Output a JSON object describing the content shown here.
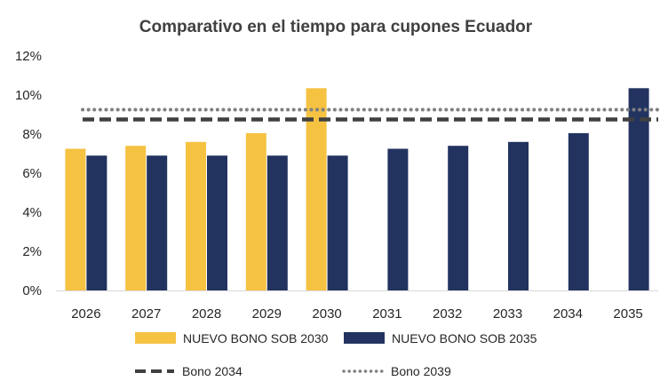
{
  "chart_data": {
    "type": "bar",
    "title": "Comparativo en el tiempo para cupones Ecuador",
    "xlabel": "",
    "ylabel": "",
    "categories": [
      "2026",
      "2027",
      "2028",
      "2029",
      "2030",
      "2031",
      "2032",
      "2033",
      "2034",
      "2035"
    ],
    "ylim": [
      0,
      12
    ],
    "yticks": [
      "0%",
      "2%",
      "4%",
      "6%",
      "8%",
      "10%",
      "12%"
    ],
    "grid": false,
    "legend_position": "bottom",
    "series": [
      {
        "name": "NUEVO BONO SOB 2030",
        "kind": "bar",
        "color": "#F5C242",
        "values": [
          7.25,
          7.4,
          7.6,
          8.05,
          10.35,
          null,
          null,
          null,
          null,
          null
        ]
      },
      {
        "name": "NUEVO BONO SOB 2035",
        "kind": "bar",
        "color": "#223360",
        "values": [
          6.9,
          6.9,
          6.9,
          6.9,
          6.9,
          7.25,
          7.4,
          7.6,
          8.05,
          10.35
        ]
      },
      {
        "name": "Bono 2034",
        "kind": "line",
        "style": "dashed",
        "color": "#404040",
        "value": 8.75
      },
      {
        "name": "Bono 2039",
        "kind": "line",
        "style": "dotted",
        "color": "#808080",
        "value": 9.25
      }
    ]
  }
}
